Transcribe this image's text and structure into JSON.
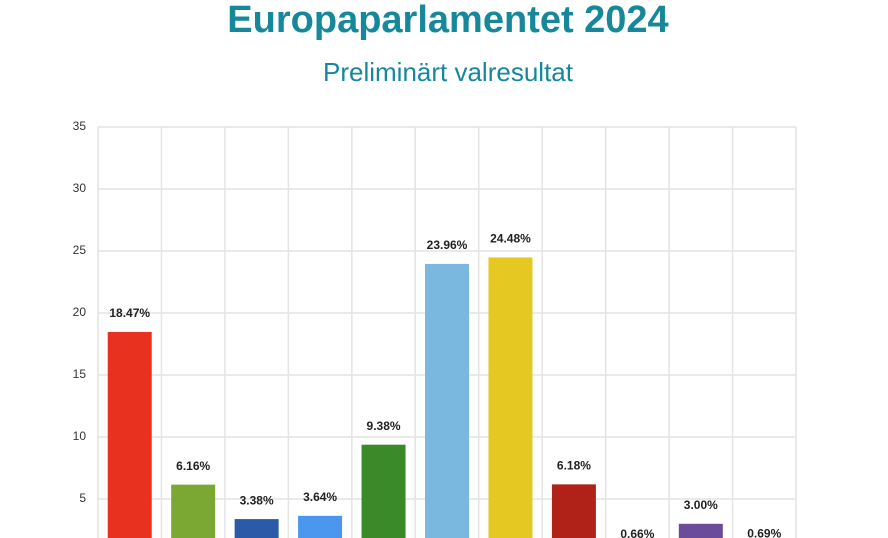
{
  "chart_data": {
    "type": "bar",
    "title": "Europaparlamentet 2024",
    "subtitle": "Preliminärt valresultat",
    "categories": [
      null,
      null,
      null,
      null,
      null,
      null,
      null,
      null,
      null,
      null,
      null
    ],
    "values": [
      18.47,
      6.16,
      3.38,
      3.64,
      9.38,
      23.96,
      24.48,
      6.18,
      0.66,
      3.0,
      0.69
    ],
    "value_labels": [
      "18.47%",
      "6.16%",
      "3.38%",
      "3.64%",
      "9.38%",
      "23.96%",
      "24.48%",
      "6.18%",
      "0.66%",
      "3.00%",
      "0.69%"
    ],
    "colors": [
      "#e8321f",
      "#7ba733",
      "#2a5aa8",
      "#4b97f0",
      "#3a8a2a",
      "#7ab8e0",
      "#e6c822",
      "#b02218",
      "#8a8a8a",
      "#6b4c9a",
      "#3b78c0"
    ],
    "ylim": [
      0,
      35
    ],
    "yticks": [
      5,
      10,
      15,
      20,
      25,
      30,
      35
    ],
    "grid": true
  }
}
